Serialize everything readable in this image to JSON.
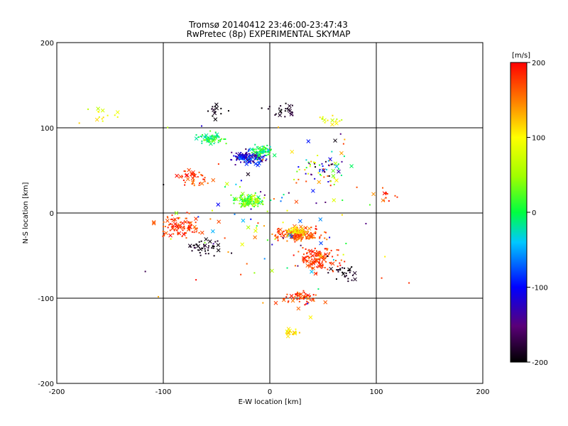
{
  "chart_data": {
    "type": "scatter",
    "title": "Tromsø 20140412 23:46:00-23:47:43",
    "subtitle": "RwPretec (8p) EXPERIMENTAL SKYMAP",
    "xlabel": "E-W location [km]",
    "ylabel": "N-S location [km]",
    "xlim": [
      -200,
      200
    ],
    "ylim": [
      -200,
      200
    ],
    "x_ticks": [
      "-200",
      "-100",
      "0",
      "100",
      "200"
    ],
    "y_ticks": [
      "200",
      "100",
      "0",
      "-100",
      "-200"
    ],
    "grid": true,
    "grid_lines": [
      -100,
      0,
      100
    ],
    "colorbar": {
      "label": "[m/s]",
      "min": -200,
      "max": 200,
      "ticks": [
        "200",
        "100",
        "0",
        "-100",
        "-200"
      ]
    },
    "clusters": [
      {
        "cx": -20,
        "cy": 65,
        "rx": 22,
        "ry": 10,
        "n": 140,
        "vmin": -180,
        "vmax": -60
      },
      {
        "cx": -8,
        "cy": 72,
        "rx": 15,
        "ry": 9,
        "n": 70,
        "vmin": -40,
        "vmax": 30
      },
      {
        "cx": -55,
        "cy": 88,
        "rx": 18,
        "ry": 10,
        "n": 60,
        "vmin": -30,
        "vmax": 40
      },
      {
        "cx": -20,
        "cy": 15,
        "rx": 20,
        "ry": 10,
        "n": 120,
        "vmin": -20,
        "vmax": 80
      },
      {
        "cx": 25,
        "cy": -25,
        "rx": 30,
        "ry": 12,
        "n": 170,
        "vmin": 140,
        "vmax": 200
      },
      {
        "cx": 25,
        "cy": -22,
        "rx": 12,
        "ry": 6,
        "n": 40,
        "vmin": 80,
        "vmax": 130
      },
      {
        "cx": 45,
        "cy": -55,
        "rx": 25,
        "ry": 18,
        "n": 130,
        "vmin": 150,
        "vmax": 200
      },
      {
        "cx": -85,
        "cy": -15,
        "rx": 25,
        "ry": 20,
        "n": 90,
        "vmin": 150,
        "vmax": 200
      },
      {
        "cx": -60,
        "cy": -40,
        "rx": 20,
        "ry": 15,
        "n": 40,
        "vmin": -200,
        "vmax": -180
      },
      {
        "cx": 70,
        "cy": -70,
        "rx": 18,
        "ry": 12,
        "n": 30,
        "vmin": -200,
        "vmax": -180
      },
      {
        "cx": 30,
        "cy": -100,
        "rx": 25,
        "ry": 15,
        "n": 60,
        "vmin": 150,
        "vmax": 200
      },
      {
        "cx": 20,
        "cy": -140,
        "rx": 12,
        "ry": 6,
        "n": 20,
        "vmin": 80,
        "vmax": 130
      },
      {
        "cx": 10,
        "cy": 120,
        "rx": 20,
        "ry": 12,
        "n": 25,
        "vmin": -200,
        "vmax": -180
      },
      {
        "cx": 55,
        "cy": 110,
        "rx": 20,
        "ry": 8,
        "n": 15,
        "vmin": 60,
        "vmax": 120
      },
      {
        "cx": -160,
        "cy": 115,
        "rx": 30,
        "ry": 15,
        "n": 15,
        "vmin": 60,
        "vmax": 120
      },
      {
        "cx": -70,
        "cy": 40,
        "rx": 20,
        "ry": 15,
        "n": 40,
        "vmin": 150,
        "vmax": 200
      },
      {
        "cx": 50,
        "cy": 50,
        "rx": 30,
        "ry": 25,
        "n": 60,
        "vmin": -200,
        "vmax": 200
      },
      {
        "cx": 110,
        "cy": 20,
        "rx": 20,
        "ry": 15,
        "n": 12,
        "vmin": 150,
        "vmax": 200
      },
      {
        "cx": -50,
        "cy": 120,
        "rx": 15,
        "ry": 12,
        "n": 15,
        "vmin": -200,
        "vmax": -180
      },
      {
        "cx": 0,
        "cy": 0,
        "rx": 150,
        "ry": 150,
        "n": 120,
        "vmin": -200,
        "vmax": 200
      }
    ]
  }
}
